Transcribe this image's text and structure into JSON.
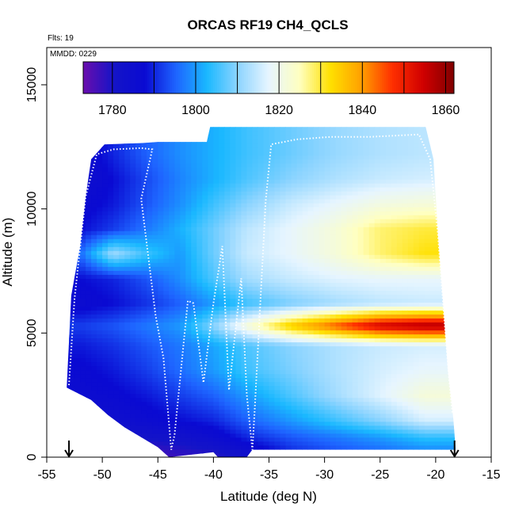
{
  "chart_data": {
    "type": "heatmap",
    "title": "ORCAS RF19 CH4_QCLS",
    "annotations": {
      "flights": "Flts: 19",
      "mmdd": "MMDD: 0229"
    },
    "xlabel": "Latitude (deg N)",
    "ylabel": "Altitude (m)",
    "xlim": [
      -55,
      -15
    ],
    "ylim": [
      0,
      16500
    ],
    "x_ticks": [
      -55,
      -50,
      -45,
      -40,
      -35,
      -30,
      -25,
      -20,
      -15
    ],
    "y_ticks": [
      0,
      5000,
      10000,
      15000
    ],
    "colorbar": {
      "min": 1773,
      "max": 1862,
      "ticks": [
        1780,
        1800,
        1820,
        1840,
        1860
      ],
      "boundaries": [
        1780,
        1790,
        1800,
        1810,
        1820,
        1830,
        1840,
        1850,
        1860
      ],
      "colors": [
        "#6a0dad",
        "#1414c8",
        "#0a0ad2",
        "#1e64ff",
        "#1ab8ff",
        "#8cd4ff",
        "#e6f5ff",
        "#ffffc0",
        "#ffe000",
        "#ffa000",
        "#ff3000",
        "#d00000",
        "#800000"
      ]
    },
    "bottom_markers_lat": [
      -53,
      -18.3
    ],
    "altitude_band_values": [
      {
        "alt": 150,
        "values": [
          1776,
          1777,
          1776,
          1778,
          1779,
          1783,
          1790,
          1793,
          1795,
          1797
        ]
      },
      {
        "alt": 800,
        "values": [
          1779,
          1780,
          1781,
          1782,
          1785,
          1790,
          1794,
          1797,
          1800,
          1804
        ]
      },
      {
        "alt": 1500,
        "values": [
          1783,
          1784,
          1786,
          1788,
          1790,
          1795,
          1800,
          1805,
          1810,
          1816
        ]
      },
      {
        "alt": 2500,
        "values": [
          1786,
          1787,
          1789,
          1792,
          1795,
          1800,
          1806,
          1812,
          1817,
          1822
        ]
      },
      {
        "alt": 3500,
        "values": [
          1787,
          1789,
          1792,
          1796,
          1800,
          1805,
          1809,
          1813,
          1816,
          1818
        ]
      },
      {
        "alt": 4500,
        "values": [
          1789,
          1791,
          1794,
          1797,
          1801,
          1806,
          1810,
          1813,
          1815,
          1816
        ]
      },
      {
        "alt": 5300,
        "values": [
          1792,
          1794,
          1797,
          1800,
          1810,
          1822,
          1835,
          1845,
          1855,
          1858
        ]
      },
      {
        "alt": 6200,
        "values": [
          1786,
          1788,
          1791,
          1795,
          1800,
          1805,
          1809,
          1812,
          1814,
          1815
        ]
      },
      {
        "alt": 7200,
        "values": [
          1788,
          1790,
          1794,
          1799,
          1806,
          1812,
          1815,
          1817,
          1818,
          1818
        ]
      },
      {
        "alt": 8200,
        "values": [
          1796,
          1812,
          1805,
          1800,
          1808,
          1815,
          1818,
          1822,
          1828,
          1832
        ]
      },
      {
        "alt": 9200,
        "values": [
          1788,
          1792,
          1797,
          1802,
          1808,
          1814,
          1818,
          1822,
          1828,
          1830
        ]
      },
      {
        "alt": 10200,
        "values": [
          1786,
          1789,
          1794,
          1799,
          1805,
          1810,
          1815,
          1818,
          1821,
          1822
        ]
      },
      {
        "alt": 11200,
        "values": [
          1784,
          1788,
          1793,
          1798,
          1802,
          1806,
          1810,
          1813,
          1815,
          1816
        ]
      },
      {
        "alt": 12200,
        "values": [
          1785,
          1790,
          1795,
          1799,
          1802,
          1805,
          1808,
          1811,
          1813,
          1814
        ]
      }
    ],
    "band_latitudes": [
      -52,
      -49,
      -46,
      -43,
      -40,
      -37,
      -33,
      -29,
      -25,
      -21
    ],
    "flight_track": [
      [
        -53.0,
        2900
      ],
      [
        -52.5,
        6400
      ],
      [
        -51.5,
        10500
      ],
      [
        -50.5,
        12200
      ],
      [
        -49,
        12400
      ],
      [
        -46.5,
        12450
      ],
      [
        -45.5,
        12400
      ],
      [
        -46.5,
        10400
      ],
      [
        -45.2,
        5700
      ],
      [
        -44.5,
        4000
      ],
      [
        -43.8,
        300
      ],
      [
        -43.5,
        900
      ],
      [
        -42.3,
        6300
      ],
      [
        -41.8,
        6200
      ],
      [
        -40.9,
        3000
      ],
      [
        -40.0,
        6200
      ],
      [
        -39.2,
        8500
      ],
      [
        -38.6,
        2700
      ],
      [
        -37.5,
        7200
      ],
      [
        -37.0,
        2500
      ],
      [
        -36.5,
        300
      ],
      [
        -36.3,
        1800
      ],
      [
        -35.3,
        10300
      ],
      [
        -34.8,
        12600
      ],
      [
        -32.5,
        12800
      ],
      [
        -29.5,
        12900
      ],
      [
        -26,
        12900
      ],
      [
        -21.5,
        13000
      ],
      [
        -20.5,
        12000
      ],
      [
        -19.8,
        9000
      ],
      [
        -19.3,
        6000
      ],
      [
        -18.8,
        3200
      ],
      [
        -18.5,
        1800
      ]
    ]
  }
}
